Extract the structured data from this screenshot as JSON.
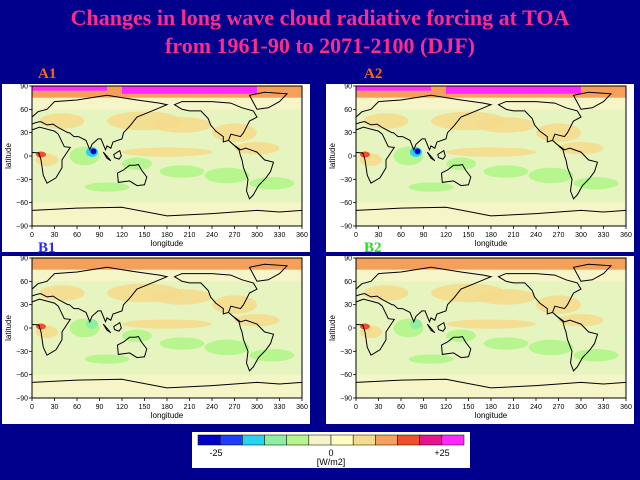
{
  "title": {
    "line1": "Changes in long wave cloud radiative forcing at TOA",
    "line2": "from 1961-90 to 2071-2100 (DJF)"
  },
  "panels": [
    {
      "label": "A1",
      "label_color": "#ff6a00"
    },
    {
      "label": "A2",
      "label_color": "#ff6a00"
    },
    {
      "label": "B1",
      "label_color": "#2a2aff"
    },
    {
      "label": "B2",
      "label_color": "#22dd22"
    }
  ],
  "axes": {
    "xlabel": "longitude",
    "ylabel": "latitude",
    "x_ticks": [
      "0",
      "30",
      "60",
      "90",
      "120",
      "150",
      "180",
      "210",
      "240",
      "270",
      "300",
      "330",
      "360"
    ],
    "y_ticks": [
      "90",
      "60",
      "30",
      "0",
      "-30",
      "-60",
      "-90"
    ]
  },
  "colorbar": {
    "colors": [
      "#0000c8",
      "#1e3cff",
      "#28d2f0",
      "#8cf0a0",
      "#b4f58c",
      "#f5f5c8",
      "#ffffc0",
      "#f5dc8c",
      "#f5a05a",
      "#f05028",
      "#e6148c",
      "#ff28ff"
    ],
    "tick_labels": [
      "-25",
      "0",
      "+25"
    ],
    "unit": "[W/m2]"
  }
}
